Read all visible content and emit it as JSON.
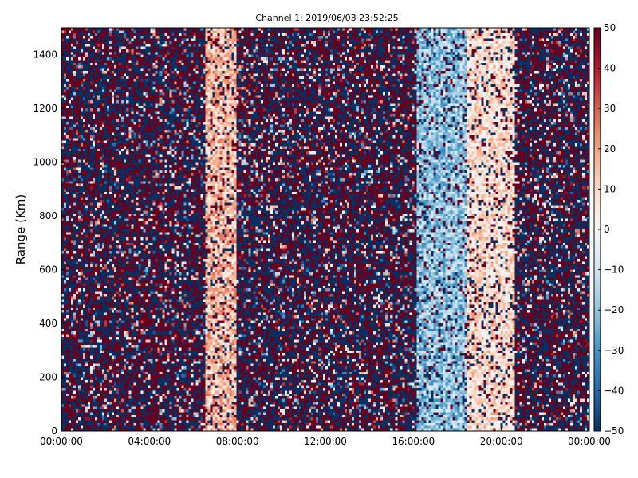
{
  "chart_data": {
    "type": "heatmap",
    "title": "Channel 1: 2019/06/03 23:52:25",
    "xlabel": "",
    "ylabel": "Range (Km)",
    "x_ticks": [
      "00:00:00",
      "04:00:00",
      "08:00:00",
      "12:00:00",
      "16:00:00",
      "20:00:00",
      "00:00:00"
    ],
    "x_tick_hours": [
      0,
      4,
      8,
      12,
      16,
      20,
      24
    ],
    "xlim_hours": [
      0,
      24
    ],
    "y_ticks": [
      0,
      200,
      400,
      600,
      800,
      1000,
      1200,
      1400
    ],
    "ylim": [
      0,
      1500
    ],
    "colorbar": {
      "ticks": [
        50,
        40,
        30,
        20,
        10,
        0,
        -10,
        -20,
        -30,
        -40,
        -50
      ],
      "range": [
        -50,
        50
      ],
      "colormap": "RdBu_r"
    },
    "bands": [
      {
        "start_hour": 0.0,
        "end_hour": 6.5,
        "character": "noise"
      },
      {
        "start_hour": 6.5,
        "end_hour": 8.0,
        "mean_value": 15
      },
      {
        "start_hour": 8.0,
        "end_hour": 16.2,
        "character": "noise"
      },
      {
        "start_hour": 16.2,
        "end_hour": 18.4,
        "mean_value": -20
      },
      {
        "start_hour": 18.4,
        "end_hour": 20.6,
        "mean_value": 8
      },
      {
        "start_hour": 20.6,
        "end_hour": 24.0,
        "character": "noise"
      }
    ]
  },
  "colors": {
    "low": "#053061",
    "mid": "#f7f7f7",
    "high": "#67001f"
  }
}
